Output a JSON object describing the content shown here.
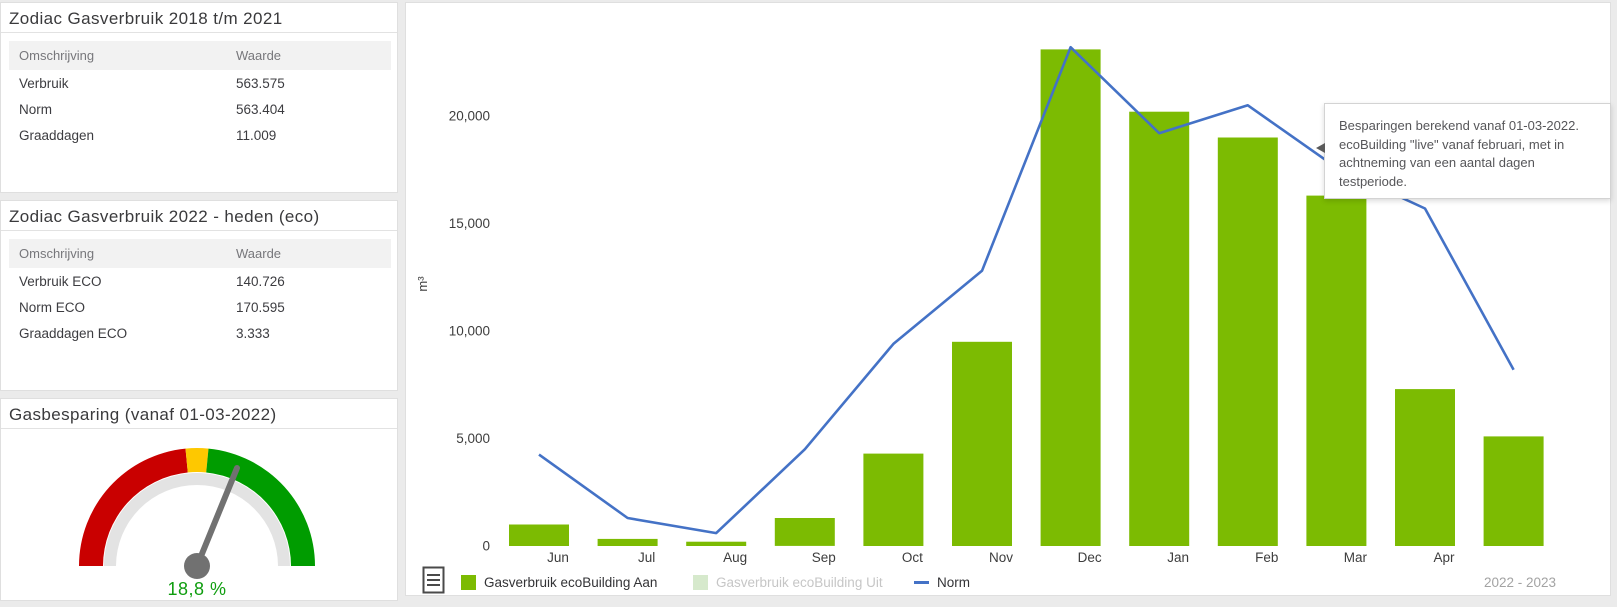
{
  "panels": {
    "historic": {
      "title": "Zodiac Gasverbruik 2018 t/m 2021",
      "headers": {
        "col1": "Omschrijving",
        "col2": "Waarde"
      },
      "rows": [
        {
          "label": "Verbruik",
          "value": "563.575"
        },
        {
          "label": "Norm",
          "value": "563.404"
        },
        {
          "label": "Graaddagen",
          "value": "11.009"
        }
      ]
    },
    "eco": {
      "title": "Zodiac Gasverbruik 2022 - heden (eco)",
      "headers": {
        "col1": "Omschrijving",
        "col2": "Waarde"
      },
      "rows": [
        {
          "label": "Verbruik ECO",
          "value": "140.726"
        },
        {
          "label": "Norm ECO",
          "value": "170.595"
        },
        {
          "label": "Graaddagen ECO",
          "value": "3.333"
        }
      ]
    },
    "gauge": {
      "title": "Gasbesparing (vanaf 01-03-2022)",
      "value_label": "18,8 %",
      "value_percent": 18.8,
      "colors": {
        "red": "#c90000",
        "yellow": "#fec800",
        "green": "#009c00",
        "track": "#e3e3e3",
        "needle": "#717171",
        "value_text": "#0f9d0f"
      }
    }
  },
  "chart_data": {
    "type": "bar",
    "subtype": "bar+line combo",
    "categories": [
      "Jun",
      "Jul",
      "Aug",
      "Sep",
      "Oct",
      "Nov",
      "Dec",
      "Jan",
      "Feb",
      "Mar",
      "Apr",
      ""
    ],
    "series": [
      {
        "name": "Gasverbruik ecoBuilding Aan",
        "type": "bar",
        "color": "#7cbb02",
        "disabled": false,
        "values": [
          1000,
          330,
          200,
          1300,
          4300,
          9500,
          23100,
          20200,
          19000,
          16300,
          7300,
          5100
        ]
      },
      {
        "name": "Gasverbruik ecoBuilding Uit",
        "type": "bar",
        "color": "#d6e9cc",
        "disabled": true,
        "values": []
      },
      {
        "name": "Norm",
        "type": "line",
        "color": "#4472c6",
        "disabled": false,
        "values": [
          4250,
          1300,
          600,
          4500,
          9400,
          12800,
          23200,
          19200,
          20500,
          17600,
          15700,
          8200
        ]
      }
    ],
    "ylabel": "m³",
    "yticks": [
      0,
      5000,
      10000,
      15000,
      20000
    ],
    "ytick_labels": [
      "0",
      "5,000",
      "10,000",
      "15,000",
      "20,000"
    ],
    "ylim": [
      0,
      25500
    ],
    "grid": false,
    "legend_position": "bottom",
    "period_label": "2022 - 2023"
  },
  "tooltip": {
    "line1": "Besparingen berekend vanaf 01-03-2022.",
    "line2": "ecoBuilding \"live\" vanaf februari, met in",
    "line3": "achtneming van een aantal dagen testperiode."
  }
}
